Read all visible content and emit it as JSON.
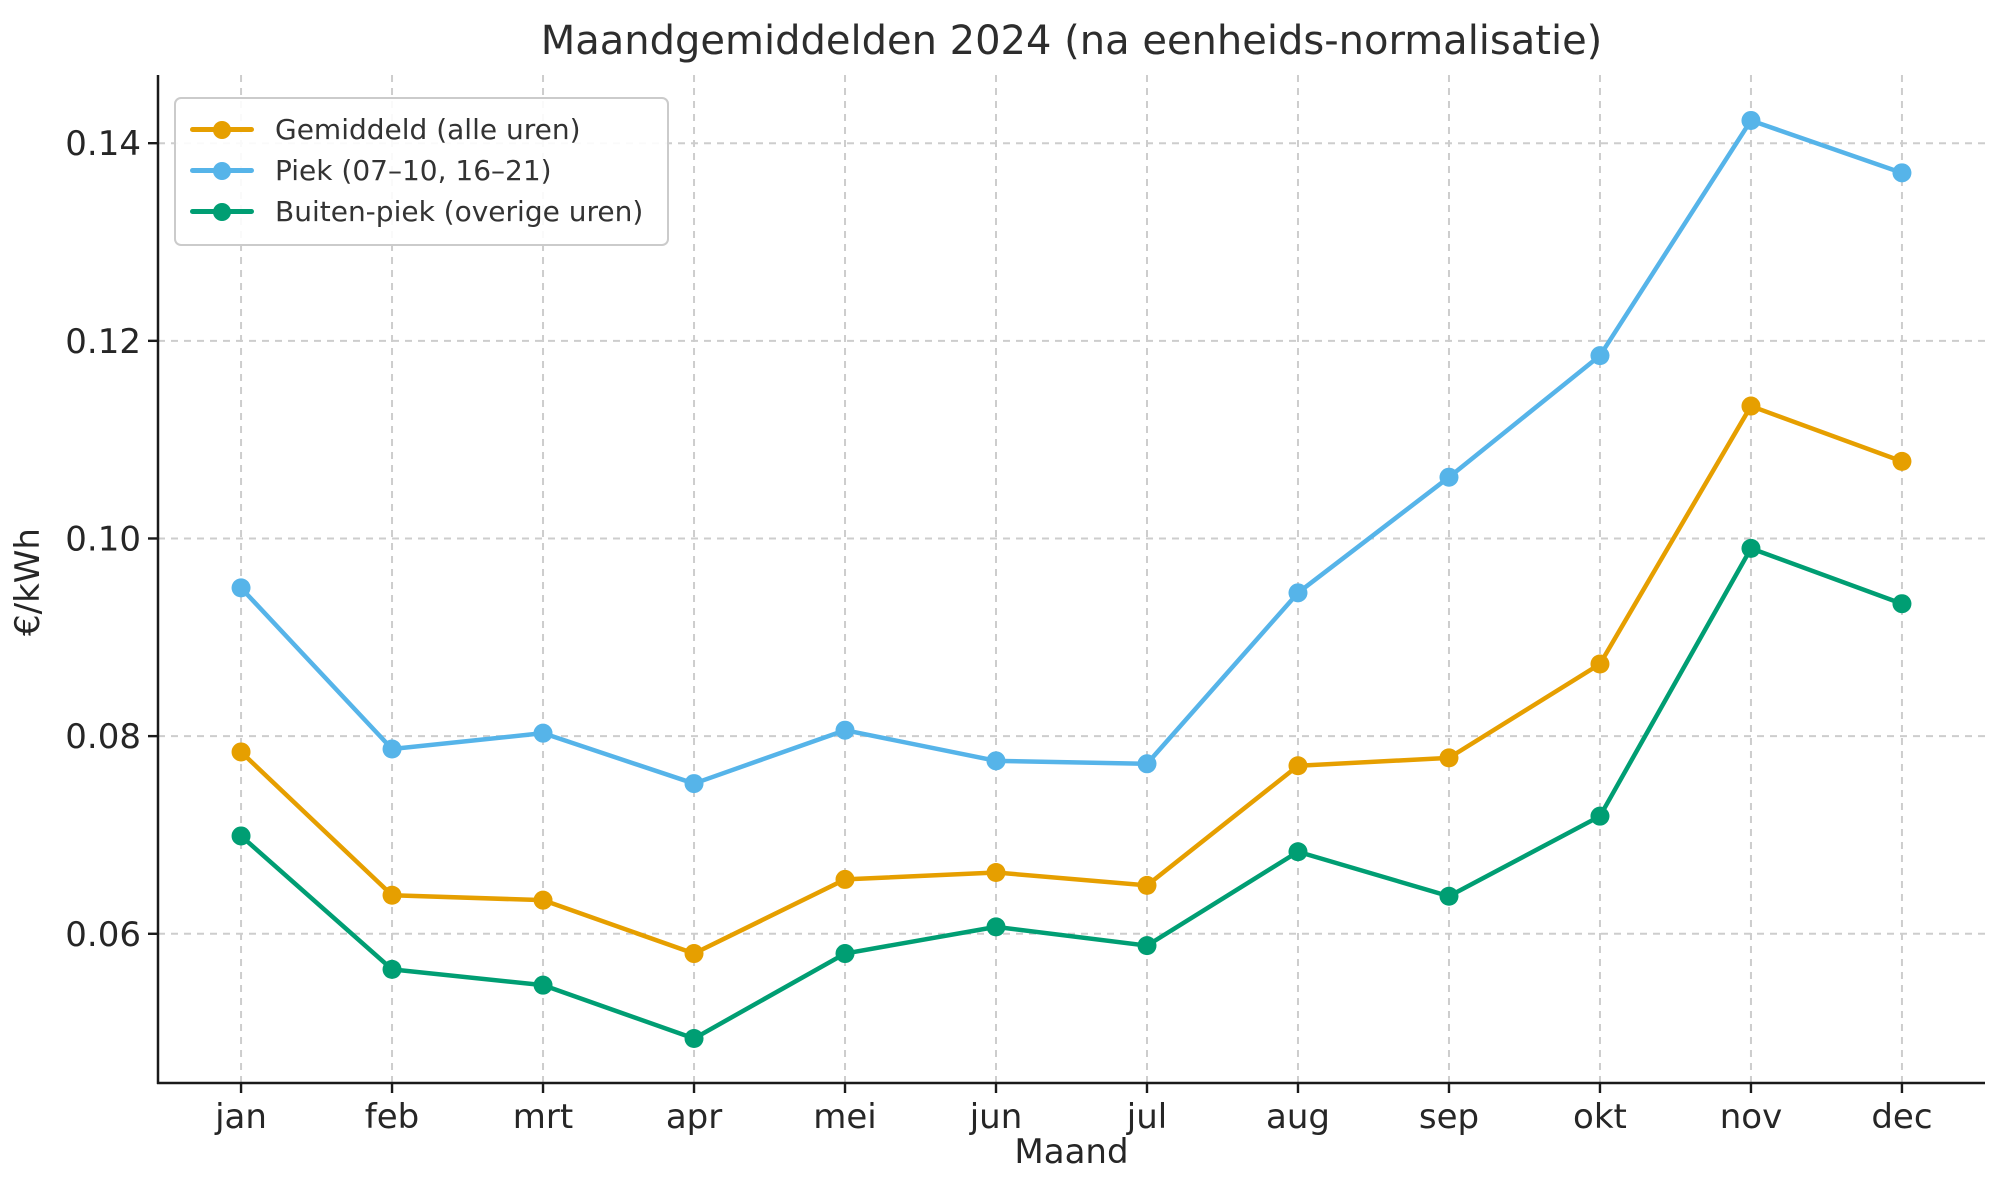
{
  "chart_data": {
    "type": "line",
    "title": "Maandgemiddelden 2024 (na eenheids-normalisatie)",
    "xlabel": "Maand",
    "ylabel": "€/kWh",
    "categories": [
      "jan",
      "feb",
      "mrt",
      "apr",
      "mei",
      "jun",
      "jul",
      "aug",
      "sep",
      "okt",
      "nov",
      "dec"
    ],
    "series": [
      {
        "name": "Gemiddeld (alle uren)",
        "color": "#E69F00",
        "values": [
          0.0784,
          0.0639,
          0.0634,
          0.058,
          0.0655,
          0.0662,
          0.0649,
          0.077,
          0.0778,
          0.0873,
          0.1134,
          0.1078
        ]
      },
      {
        "name": "Piek (07–10, 16–21)",
        "color": "#56B4E9",
        "values": [
          0.095,
          0.0787,
          0.0803,
          0.0752,
          0.0806,
          0.0775,
          0.0772,
          0.0945,
          0.1062,
          0.1185,
          0.1423,
          0.137
        ]
      },
      {
        "name": "Buiten-piek (overige uren)",
        "color": "#009E73",
        "values": [
          0.0699,
          0.0564,
          0.0548,
          0.0494,
          0.058,
          0.0607,
          0.0588,
          0.0683,
          0.0638,
          0.0719,
          0.099,
          0.0934
        ]
      }
    ],
    "y_ticks": [
      0.06,
      0.08,
      0.1,
      0.12,
      0.14
    ],
    "ylim": [
      0.0449,
      0.1469
    ],
    "xlim_index": [
      -0.55,
      11.55
    ],
    "grid": true,
    "grid_style": "dashed",
    "legend_position": "upper left",
    "colors": {
      "grid": "#cdcdcd",
      "spine": "#1a1a1a",
      "text": "#262626"
    }
  }
}
